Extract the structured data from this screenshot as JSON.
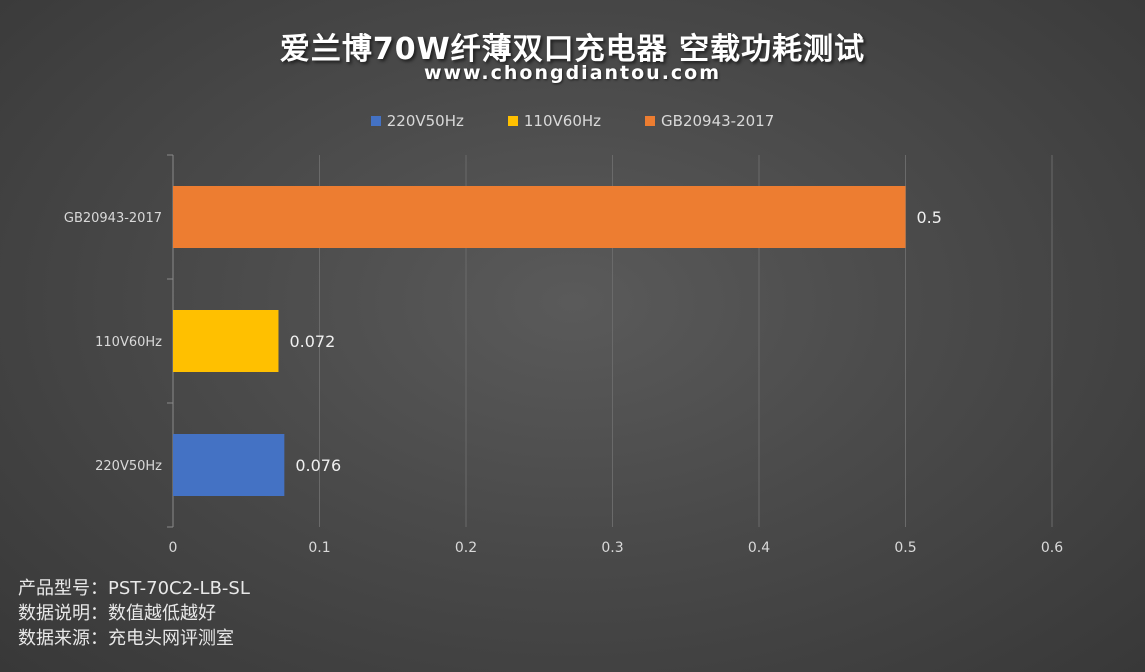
{
  "title": "爱兰博70W纤薄双口充电器 空载功耗测试",
  "subtitle": "www.chongdiantou.com",
  "notes": [
    "产品型号：PST-70C2-LB-SL",
    "数据说明：数值越低越好",
    "数据来源：充电头网评测室"
  ],
  "colors": {
    "220V50Hz": "#4472c4",
    "110V60Hz": "#ffc000",
    "GB20943-2017": "#ed7d31",
    "grid": "#6a6a6a"
  },
  "chart_data": {
    "type": "bar",
    "orientation": "horizontal",
    "categories": [
      "220V50Hz",
      "110V60Hz",
      "GB20943-2017"
    ],
    "values": [
      0.076,
      0.072,
      0.5
    ],
    "data_labels": [
      "0.076",
      "0.072",
      "0.5"
    ],
    "legend": [
      "220V50Hz",
      "110V60Hz",
      "GB20943-2017"
    ],
    "legend_position": "top",
    "xlim": [
      0,
      0.6
    ],
    "xticks": [
      "0",
      "0.1",
      "0.2",
      "0.3",
      "0.4",
      "0.5",
      "0.6"
    ],
    "grid": true
  }
}
